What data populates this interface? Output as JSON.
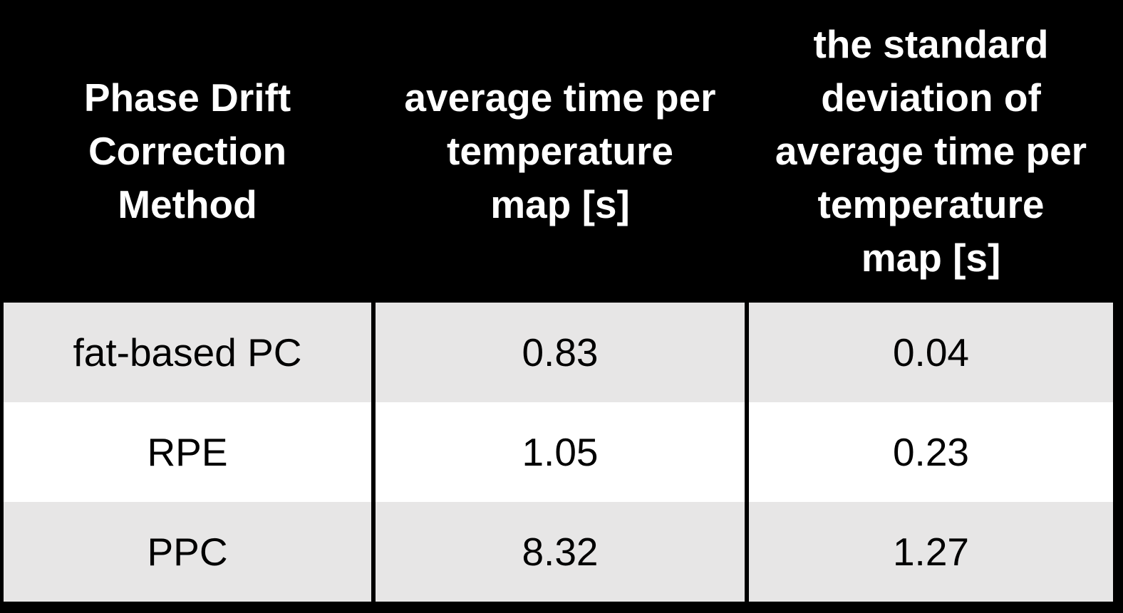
{
  "colors": {
    "background": "#000000",
    "header_text": "#ffffff",
    "row_shaded": "#e7e6e6",
    "row_plain": "#ffffff",
    "cell_text": "#000000"
  },
  "table": {
    "headers": [
      "Phase Drift\nCorrection\nMethod",
      "average time per\ntemperature\nmap [s]",
      "the standard\ndeviation of\naverage time per\ntemperature\nmap [s]"
    ],
    "rows": [
      {
        "method": "fat-based PC",
        "avg_time": "0.83",
        "std_dev": "0.04"
      },
      {
        "method": "RPE",
        "avg_time": "1.05",
        "std_dev": "0.23"
      },
      {
        "method": "PPC",
        "avg_time": "8.32",
        "std_dev": "1.27"
      }
    ]
  },
  "chart_data": {
    "type": "table",
    "columns": [
      "Phase Drift Correction Method",
      "average time per temperature map [s]",
      "the standard deviation of average time per temperature map [s]"
    ],
    "rows": [
      [
        "fat-based PC",
        0.83,
        0.04
      ],
      [
        "RPE",
        1.05,
        0.23
      ],
      [
        "PPC",
        8.32,
        1.27
      ]
    ],
    "layout_hints": {
      "header_background": "#000000",
      "header_text_color": "#ffffff",
      "row_striping": [
        "#e7e6e6",
        "#ffffff",
        "#e7e6e6"
      ],
      "grid_on": true
    }
  }
}
